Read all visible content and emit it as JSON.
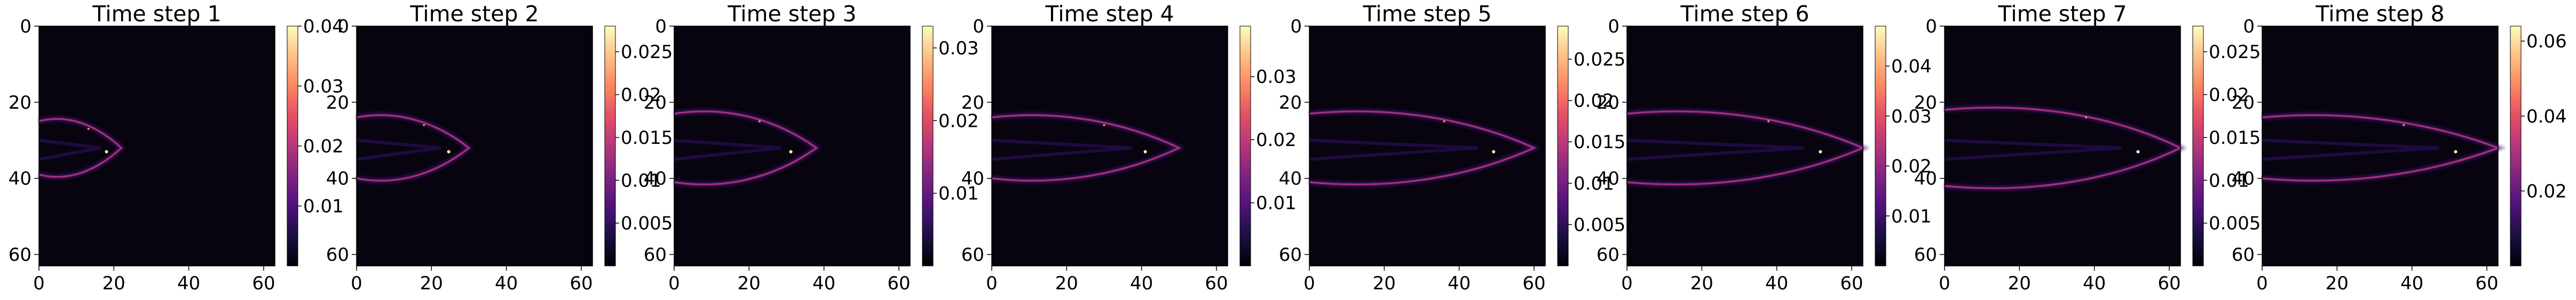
{
  "chart_data": [
    {
      "type": "heatmap",
      "title": "Time step 1",
      "xlim": [
        0,
        63
      ],
      "ylim": [
        63,
        0
      ],
      "xticks": [
        0,
        20,
        40,
        60
      ],
      "yticks": [
        0,
        20,
        40,
        60
      ],
      "colorbar": {
        "colormap": "magma",
        "min": 0,
        "max": 0.04,
        "ticks": [
          0.01,
          0.02,
          0.03,
          0.04
        ]
      }
    },
    {
      "type": "heatmap",
      "title": "Time step 2",
      "xlim": [
        0,
        63
      ],
      "ylim": [
        63,
        0
      ],
      "xticks": [
        0,
        20,
        40,
        60
      ],
      "yticks": [
        0,
        20,
        40,
        60
      ],
      "colorbar": {
        "colormap": "magma",
        "min": 0,
        "max": 0.028,
        "ticks": [
          0.005,
          0.01,
          0.015,
          0.02,
          0.025
        ]
      }
    },
    {
      "type": "heatmap",
      "title": "Time step 3",
      "xlim": [
        0,
        63
      ],
      "ylim": [
        63,
        0
      ],
      "xticks": [
        0,
        20,
        40,
        60
      ],
      "yticks": [
        0,
        20,
        40,
        60
      ],
      "colorbar": {
        "colormap": "magma",
        "min": 0,
        "max": 0.033,
        "ticks": [
          0.01,
          0.02,
          0.03
        ]
      }
    },
    {
      "type": "heatmap",
      "title": "Time step 4",
      "xlim": [
        0,
        63
      ],
      "ylim": [
        63,
        0
      ],
      "xticks": [
        0,
        20,
        40,
        60
      ],
      "yticks": [
        0,
        20,
        40,
        60
      ],
      "colorbar": {
        "colormap": "magma",
        "min": 0,
        "max": 0.038,
        "ticks": [
          0.01,
          0.02,
          0.03
        ]
      }
    },
    {
      "type": "heatmap",
      "title": "Time step 5",
      "xlim": [
        0,
        63
      ],
      "ylim": [
        63,
        0
      ],
      "xticks": [
        0,
        20,
        40,
        60
      ],
      "yticks": [
        0,
        20,
        40,
        60
      ],
      "colorbar": {
        "colormap": "magma",
        "min": 0,
        "max": 0.029,
        "ticks": [
          0.005,
          0.01,
          0.015,
          0.02,
          0.025
        ]
      }
    },
    {
      "type": "heatmap",
      "title": "Time step 6",
      "xlim": [
        0,
        63
      ],
      "ylim": [
        63,
        0
      ],
      "xticks": [
        0,
        20,
        40,
        60
      ],
      "yticks": [
        0,
        20,
        40,
        60
      ],
      "colorbar": {
        "colormap": "magma",
        "min": 0,
        "max": 0.048,
        "ticks": [
          0.01,
          0.02,
          0.03,
          0.04
        ]
      }
    },
    {
      "type": "heatmap",
      "title": "Time step 7",
      "xlim": [
        0,
        63
      ],
      "ylim": [
        63,
        0
      ],
      "xticks": [
        0,
        20,
        40,
        60
      ],
      "yticks": [
        0,
        20,
        40,
        60
      ],
      "colorbar": {
        "colormap": "magma",
        "min": 0,
        "max": 0.028,
        "ticks": [
          0.005,
          0.01,
          0.015,
          0.02,
          0.025
        ]
      }
    },
    {
      "type": "heatmap",
      "title": "Time step 8",
      "xlim": [
        0,
        63
      ],
      "ylim": [
        63,
        0
      ],
      "xticks": [
        0,
        20,
        40,
        60
      ],
      "yticks": [
        0,
        20,
        40,
        60
      ],
      "colorbar": {
        "colormap": "magma",
        "min": 0,
        "max": 0.064,
        "ticks": [
          0.02,
          0.04,
          0.06
        ]
      }
    }
  ]
}
